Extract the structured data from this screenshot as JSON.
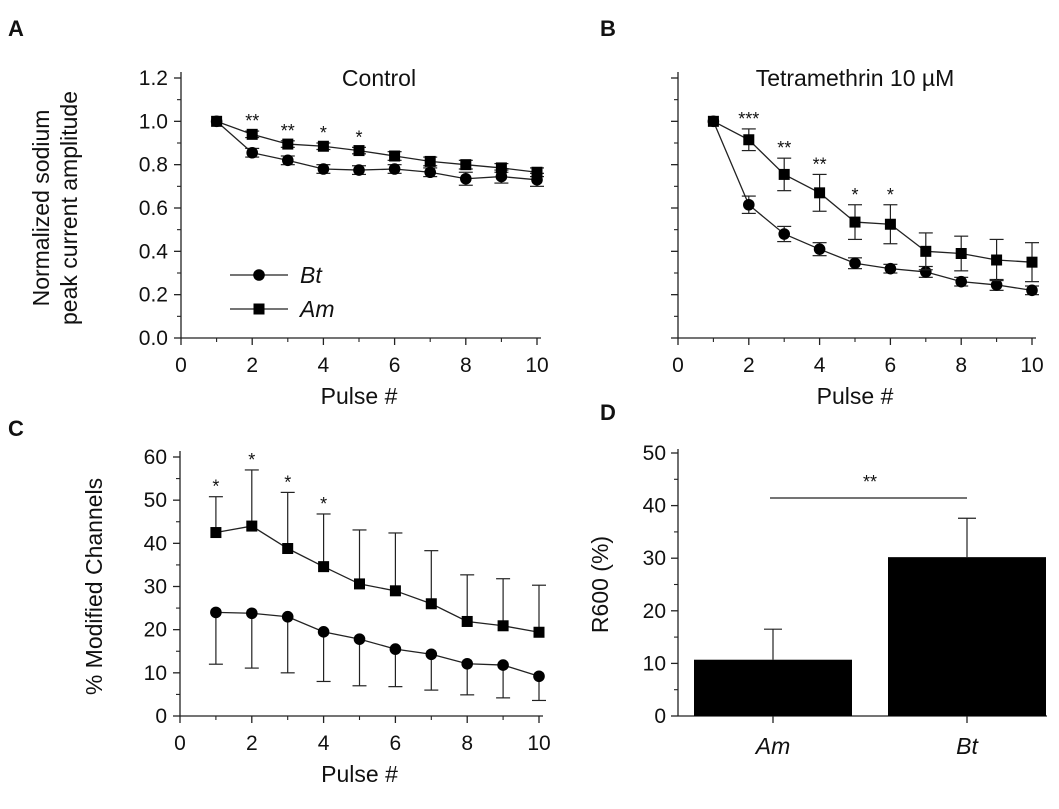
{
  "chart_data": [
    {
      "panel": "A",
      "type": "line",
      "title": "Control",
      "xlabel": "Pulse #",
      "ylabel_lines": [
        "Normalized sodium",
        "peak current amplitude"
      ],
      "xlim": [
        0,
        10
      ],
      "ylim": [
        0,
        1.2
      ],
      "xticks": [
        "0",
        "2",
        "4",
        "6",
        "8",
        "10"
      ],
      "yticks": [
        "0.0",
        "0.2",
        "0.4",
        "0.6",
        "0.8",
        "1.0",
        "1.2"
      ],
      "x": [
        1,
        2,
        3,
        4,
        5,
        6,
        7,
        8,
        9,
        10
      ],
      "series": [
        {
          "name": "Bt",
          "marker": "circle",
          "values": [
            1.0,
            0.855,
            0.82,
            0.78,
            0.775,
            0.78,
            0.765,
            0.735,
            0.745,
            0.73
          ],
          "err": [
            0.0,
            0.02,
            0.02,
            0.02,
            0.02,
            0.02,
            0.02,
            0.03,
            0.03,
            0.03
          ]
        },
        {
          "name": "Am",
          "marker": "square",
          "values": [
            1.0,
            0.94,
            0.895,
            0.885,
            0.865,
            0.84,
            0.815,
            0.8,
            0.785,
            0.765
          ],
          "err": [
            0.0,
            0.015,
            0.015,
            0.015,
            0.015,
            0.02,
            0.02,
            0.02,
            0.02,
            0.02
          ]
        }
      ],
      "significance": [
        {
          "x": 2,
          "label": "**"
        },
        {
          "x": 3,
          "label": "**"
        },
        {
          "x": 4,
          "label": "*"
        },
        {
          "x": 5,
          "label": "*"
        }
      ],
      "legend_position": "bottom-left"
    },
    {
      "panel": "B",
      "type": "line",
      "title": "Tetramethrin 10 µM",
      "xlabel": "Pulse #",
      "xlim": [
        0,
        10
      ],
      "ylim": [
        0,
        1.2
      ],
      "xticks": [
        "0",
        "2",
        "4",
        "6",
        "8",
        "10"
      ],
      "x": [
        1,
        2,
        3,
        4,
        5,
        6,
        7,
        8,
        9,
        10
      ],
      "series": [
        {
          "name": "Bt",
          "marker": "circle",
          "values": [
            1.0,
            0.615,
            0.48,
            0.41,
            0.345,
            0.32,
            0.305,
            0.26,
            0.245,
            0.22
          ],
          "err": [
            0.0,
            0.04,
            0.035,
            0.03,
            0.025,
            0.02,
            0.025,
            0.02,
            0.025,
            0.02
          ]
        },
        {
          "name": "Am",
          "marker": "square",
          "values": [
            1.0,
            0.915,
            0.755,
            0.67,
            0.535,
            0.525,
            0.4,
            0.39,
            0.36,
            0.35
          ],
          "err": [
            0.0,
            0.05,
            0.075,
            0.085,
            0.08,
            0.09,
            0.085,
            0.08,
            0.095,
            0.09
          ]
        }
      ],
      "significance": [
        {
          "x": 2,
          "label": "***"
        },
        {
          "x": 3,
          "label": "**"
        },
        {
          "x": 4,
          "label": "**"
        },
        {
          "x": 5,
          "label": "*"
        },
        {
          "x": 6,
          "label": "*"
        }
      ]
    },
    {
      "panel": "C",
      "type": "line",
      "xlabel": "Pulse #",
      "ylabel": "% Modified Channels",
      "xlim": [
        0,
        10
      ],
      "ylim": [
        0,
        60
      ],
      "xticks": [
        "0",
        "2",
        "4",
        "6",
        "8",
        "10"
      ],
      "yticks": [
        "0",
        "10",
        "20",
        "30",
        "40",
        "50",
        "60"
      ],
      "x": [
        1,
        2,
        3,
        4,
        5,
        6,
        7,
        8,
        9,
        10
      ],
      "series": [
        {
          "name": "Bt",
          "marker": "circle",
          "values": [
            24,
            23.8,
            23,
            19.5,
            17.8,
            15.5,
            14.3,
            12.1,
            11.8,
            9.2
          ],
          "err_down": [
            12,
            12.7,
            13,
            11.5,
            10.8,
            8.7,
            8.3,
            7.2,
            7.6,
            5.6
          ]
        },
        {
          "name": "Am",
          "marker": "square",
          "values": [
            42.5,
            44,
            38.8,
            34.6,
            30.6,
            29,
            26,
            21.9,
            20.9,
            19.4
          ],
          "err_up": [
            8.3,
            13,
            13,
            12.2,
            12.5,
            13.4,
            12.3,
            10.8,
            10.9,
            10.9
          ]
        }
      ],
      "significance": [
        {
          "x": 1,
          "label": "*"
        },
        {
          "x": 2,
          "label": "*"
        },
        {
          "x": 3,
          "label": "*"
        },
        {
          "x": 4,
          "label": "*"
        }
      ]
    },
    {
      "panel": "D",
      "type": "bar",
      "ylabel": "R600 (%)",
      "ylim": [
        0,
        50
      ],
      "yticks": [
        "0",
        "10",
        "20",
        "30",
        "40",
        "50"
      ],
      "categories": [
        "Am",
        "Bt"
      ],
      "values": [
        10.7,
        30.2
      ],
      "err": [
        5.8,
        7.4
      ],
      "significance": [
        {
          "between": [
            "Am",
            "Bt"
          ],
          "label": "**"
        }
      ]
    }
  ]
}
